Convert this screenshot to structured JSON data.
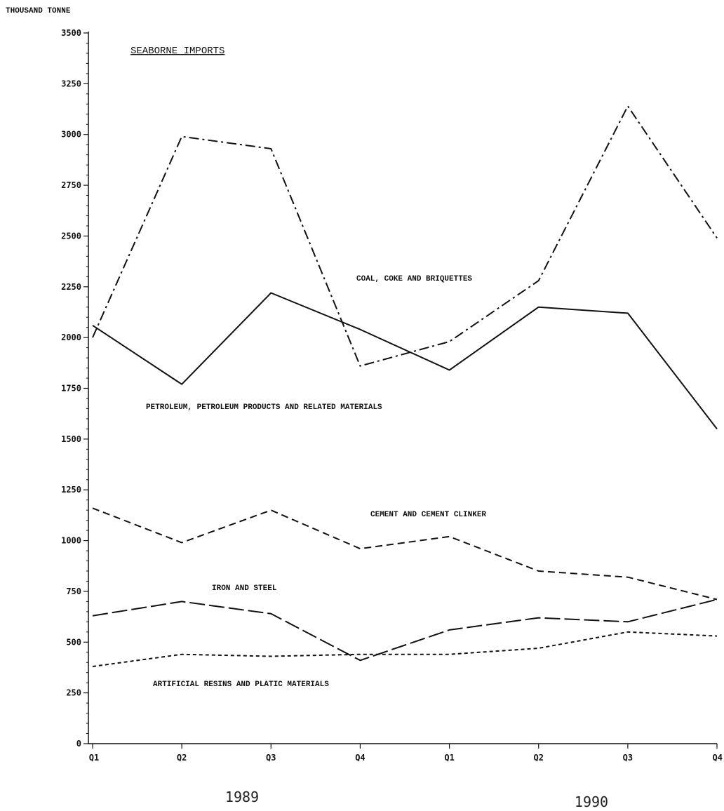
{
  "chart_data": {
    "type": "line",
    "title": "SEABORNE IMPORTS",
    "ylabel": "THOUSAND TONNE",
    "xlabel": "",
    "categories": [
      "Q1",
      "Q2",
      "Q3",
      "Q4",
      "Q1",
      "Q2",
      "Q3",
      "Q4"
    ],
    "year_labels": [
      {
        "label": "1989",
        "quarters": [
          "Q1",
          "Q2",
          "Q3",
          "Q4"
        ]
      },
      {
        "label": "1990",
        "quarters": [
          "Q1",
          "Q2",
          "Q3",
          "Q4"
        ]
      }
    ],
    "ylim": [
      0,
      3500
    ],
    "yticks": [
      0,
      250,
      500,
      750,
      1000,
      1250,
      1500,
      1750,
      2000,
      2250,
      2500,
      2750,
      3000,
      3250,
      3500
    ],
    "grid": false,
    "legend": "inline labels",
    "series": [
      {
        "name": "COAL, COKE AND BRIQUETTES",
        "values": [
          2000,
          2990,
          2930,
          1860,
          1980,
          2280,
          3140,
          2490
        ],
        "dash": "14,5,3,5"
      },
      {
        "name": "PETROLEUM, PETROLEUM PRODUCTS AND RELATED MATERIALS",
        "values": [
          2060,
          1770,
          2220,
          2040,
          1840,
          2150,
          2120,
          1550
        ],
        "dash": ""
      },
      {
        "name": "CEMENT AND CEMENT CLINKER",
        "values": [
          1160,
          990,
          1150,
          960,
          1020,
          850,
          820,
          710
        ],
        "dash": "10,6"
      },
      {
        "name": "IRON AND STEEL",
        "values": [
          630,
          700,
          640,
          410,
          560,
          620,
          600,
          710
        ],
        "dash": "22,6"
      },
      {
        "name": "ARTIFICIAL RESINS AND PLATIC MATERIALS",
        "values": [
          380,
          440,
          430,
          440,
          440,
          470,
          550,
          530
        ],
        "dash": "5,4"
      }
    ]
  }
}
